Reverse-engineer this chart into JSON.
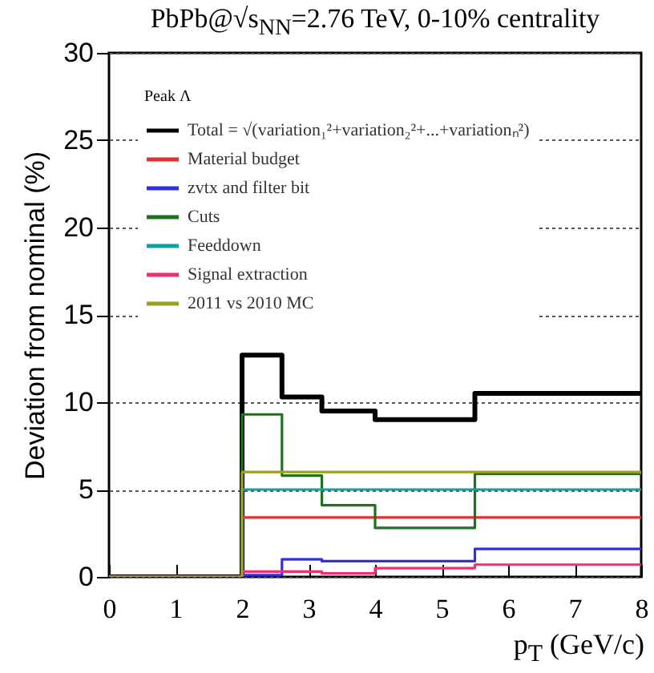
{
  "chart_data": {
    "type": "step",
    "title": "PbPb@√s$_{NN}$=2.76 TeV, 0-10% centrality",
    "xlabel": "p$_{T}$ (GeV/c)",
    "ylabel": "Deviation from nominal (%)",
    "legend_title": "Peak Λ",
    "x": [
      0,
      2,
      2.6,
      3.2,
      4,
      5.5,
      8
    ],
    "series": [
      {
        "name": "Total = √(variation₁²+variation₂²+...+variationₙ²)",
        "color": "#000000",
        "values": [
          0,
          12.7,
          10.3,
          9.5,
          9.0,
          10.5,
          10.5
        ]
      },
      {
        "name": "Material budget",
        "color": "#e03030",
        "values": [
          0,
          3.4,
          3.4,
          3.4,
          3.4,
          3.4,
          3.4
        ]
      },
      {
        "name": "zvtx and filter bit",
        "color": "#3030e0",
        "values": [
          0,
          0.1,
          1.0,
          0.9,
          0.9,
          1.6,
          1.6
        ]
      },
      {
        "name": "Cuts",
        "color": "#207020",
        "values": [
          0,
          9.3,
          5.8,
          4.1,
          2.8,
          5.9,
          5.9
        ]
      },
      {
        "name": "Feeddown",
        "color": "#10a0a0",
        "values": [
          0,
          5.0,
          5.0,
          5.0,
          5.0,
          5.0,
          5.0
        ]
      },
      {
        "name": "Signal extraction",
        "color": "#f03070",
        "values": [
          0,
          0.3,
          0.3,
          0.2,
          0.5,
          0.7,
          0.7
        ]
      },
      {
        "name": "2011 vs 2010 MC",
        "color": "#a0a020",
        "values": [
          0,
          6.0,
          6.0,
          6.0,
          6.0,
          6.0,
          6.0
        ]
      }
    ],
    "xlim": [
      0,
      8
    ],
    "xticks": [
      0,
      1,
      2,
      3,
      4,
      5,
      6,
      7,
      8
    ],
    "ylim": [
      0,
      30
    ],
    "yticks": [
      0,
      5,
      10,
      15,
      20,
      25,
      30
    ],
    "grid": "y",
    "legend": "top left"
  }
}
